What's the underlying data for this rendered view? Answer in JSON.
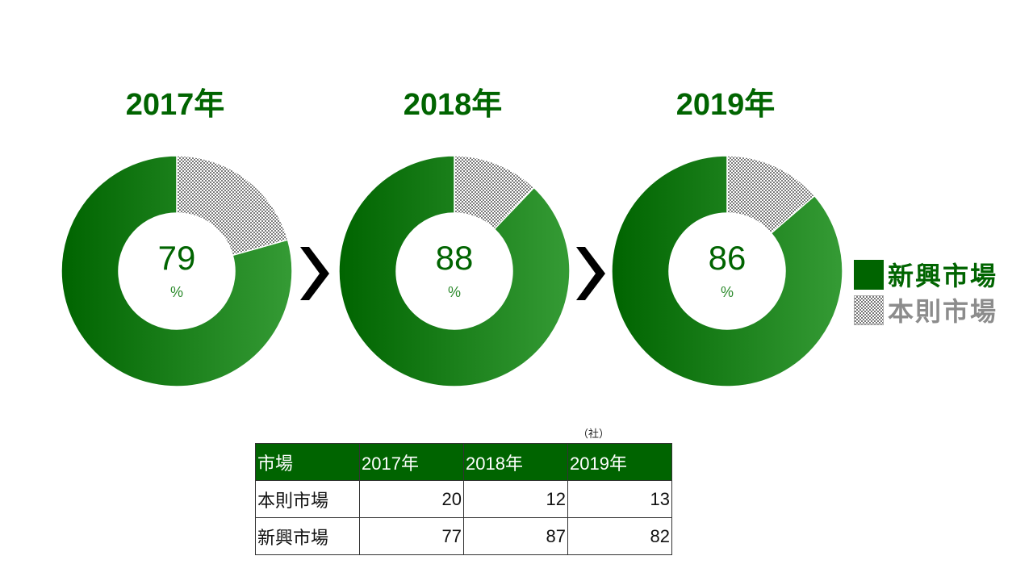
{
  "charts": [
    {
      "year_label": "2017年",
      "center_value": "79",
      "center_unit": "%",
      "emerging": 77,
      "main": 20
    },
    {
      "year_label": "2018年",
      "center_value": "88",
      "center_unit": "%",
      "emerging": 87,
      "main": 12
    },
    {
      "year_label": "2019年",
      "center_value": "86",
      "center_unit": "%",
      "emerging": 82,
      "main": 13
    }
  ],
  "arrows": [
    "chevron-right-icon",
    "chevron-right-icon"
  ],
  "legend": {
    "items": [
      {
        "label": "新興市場",
        "color": "#006400",
        "pattern": "solid"
      },
      {
        "label": "本則市場",
        "color": "#8c8c8c",
        "pattern": "checker"
      }
    ]
  },
  "table": {
    "unit_note": "（社）",
    "headers": [
      "市場",
      "2017年",
      "2018年",
      "2019年"
    ],
    "rows": [
      {
        "label": "本則市場",
        "values": [
          "20",
          "12",
          "13"
        ]
      },
      {
        "label": "新興市場",
        "values": [
          "77",
          "87",
          "82"
        ]
      }
    ]
  },
  "colors": {
    "primary_green": "#006400",
    "light_green": "#339933",
    "gray_hatch": "#777777"
  },
  "chart_data": [
    {
      "type": "pie",
      "title": "2017年",
      "categories": [
        "新興市場",
        "本則市場"
      ],
      "values": [
        77,
        20
      ],
      "center_label": "79%",
      "donut": true
    },
    {
      "type": "pie",
      "title": "2018年",
      "categories": [
        "新興市場",
        "本則市場"
      ],
      "values": [
        87,
        12
      ],
      "center_label": "88%",
      "donut": true
    },
    {
      "type": "pie",
      "title": "2019年",
      "categories": [
        "新興市場",
        "本則市場"
      ],
      "values": [
        82,
        13
      ],
      "center_label": "86%",
      "donut": true
    },
    {
      "type": "table",
      "title": "",
      "unit": "（社）",
      "columns": [
        "市場",
        "2017年",
        "2018年",
        "2019年"
      ],
      "rows": [
        [
          "本則市場",
          20,
          12,
          13
        ],
        [
          "新興市場",
          77,
          87,
          82
        ]
      ]
    }
  ]
}
